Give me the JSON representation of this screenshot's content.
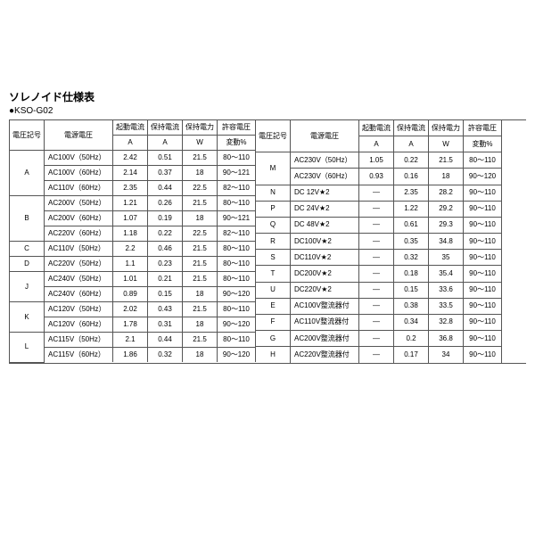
{
  "title": "ソレノイド仕様表",
  "subtitle": "●KSO-G02",
  "headers": {
    "sym": "電圧記号",
    "ps": "電源電圧",
    "inr": "起動電流\nA",
    "hold": "保持電流\nA",
    "pw": "保持電力\nW",
    "tol": "許容電圧\n変動%"
  },
  "left_groups": [
    {
      "sym": "A",
      "rows": [
        {
          "ps": "AC100V（50Hz）",
          "v": [
            "2.42",
            "0.51",
            "21.5",
            "80～110"
          ]
        },
        {
          "ps": "AC100V（60Hz）",
          "v": [
            "2.14",
            "0.37",
            "18",
            "90～121"
          ]
        },
        {
          "ps": "AC110V（60Hz）",
          "v": [
            "2.35",
            "0.44",
            "22.5",
            "82～110"
          ]
        }
      ]
    },
    {
      "sym": "B",
      "rows": [
        {
          "ps": "AC200V（50Hz）",
          "v": [
            "1.21",
            "0.26",
            "21.5",
            "80～110"
          ]
        },
        {
          "ps": "AC200V（60Hz）",
          "v": [
            "1.07",
            "0.19",
            "18",
            "90～121"
          ]
        },
        {
          "ps": "AC220V（60Hz）",
          "v": [
            "1.18",
            "0.22",
            "22.5",
            "82～110"
          ]
        }
      ]
    },
    {
      "sym": "C",
      "rows": [
        {
          "ps": "AC110V（50Hz）",
          "v": [
            "2.2",
            "0.46",
            "21.5",
            "80～110"
          ]
        }
      ]
    },
    {
      "sym": "D",
      "rows": [
        {
          "ps": "AC220V（50Hz）",
          "v": [
            "1.1",
            "0.23",
            "21.5",
            "80～110"
          ]
        }
      ]
    },
    {
      "sym": "J",
      "rows": [
        {
          "ps": "AC240V（50Hz）",
          "v": [
            "1.01",
            "0.21",
            "21.5",
            "80～110"
          ]
        },
        {
          "ps": "AC240V（60Hz）",
          "v": [
            "0.89",
            "0.15",
            "18",
            "90～120"
          ]
        }
      ]
    },
    {
      "sym": "K",
      "rows": [
        {
          "ps": "AC120V（50Hz）",
          "v": [
            "2.02",
            "0.43",
            "21.5",
            "80～110"
          ]
        },
        {
          "ps": "AC120V（60Hz）",
          "v": [
            "1.78",
            "0.31",
            "18",
            "90～120"
          ]
        }
      ]
    },
    {
      "sym": "L",
      "rows": [
        {
          "ps": "AC115V（50Hz）",
          "v": [
            "2.1",
            "0.44",
            "21.5",
            "80～110"
          ]
        },
        {
          "ps": "AC115V（60Hz）",
          "v": [
            "1.86",
            "0.32",
            "18",
            "90～120"
          ]
        }
      ]
    }
  ],
  "right_groups": [
    {
      "sym": "M",
      "rows": [
        {
          "ps": "AC230V（50Hz）",
          "v": [
            "1.05",
            "0.22",
            "21.5",
            "80～110"
          ]
        },
        {
          "ps": "AC230V（60Hz）",
          "v": [
            "0.93",
            "0.16",
            "18",
            "90～120"
          ]
        }
      ]
    },
    {
      "sym": "N",
      "rows": [
        {
          "ps": "DC 12V★2",
          "v": [
            "—",
            "2.35",
            "28.2",
            "90～110"
          ]
        }
      ]
    },
    {
      "sym": "P",
      "rows": [
        {
          "ps": "DC 24V★2",
          "v": [
            "—",
            "1.22",
            "29.2",
            "90～110"
          ]
        }
      ]
    },
    {
      "sym": "Q",
      "rows": [
        {
          "ps": "DC 48V★2",
          "v": [
            "—",
            "0.61",
            "29.3",
            "90～110"
          ]
        }
      ]
    },
    {
      "sym": "R",
      "rows": [
        {
          "ps": "DC100V★2",
          "v": [
            "—",
            "0.35",
            "34.8",
            "90～110"
          ]
        }
      ]
    },
    {
      "sym": "S",
      "rows": [
        {
          "ps": "DC110V★2",
          "v": [
            "—",
            "0.32",
            "35",
            "90～110"
          ]
        }
      ]
    },
    {
      "sym": "T",
      "rows": [
        {
          "ps": "DC200V★2",
          "v": [
            "—",
            "0.18",
            "35.4",
            "90～110"
          ]
        }
      ]
    },
    {
      "sym": "U",
      "rows": [
        {
          "ps": "DC220V★2",
          "v": [
            "—",
            "0.15",
            "33.6",
            "90～110"
          ]
        }
      ]
    },
    {
      "sym": "E",
      "rows": [
        {
          "ps": "AC100V整流器付",
          "v": [
            "—",
            "0.38",
            "33.5",
            "90～110"
          ]
        }
      ]
    },
    {
      "sym": "F",
      "rows": [
        {
          "ps": "AC110V整流器付",
          "v": [
            "—",
            "0.34",
            "32.8",
            "90～110"
          ]
        }
      ]
    },
    {
      "sym": "G",
      "rows": [
        {
          "ps": "AC200V整流器付",
          "v": [
            "—",
            "0.2",
            "36.8",
            "90～110"
          ]
        }
      ]
    },
    {
      "sym": "H",
      "rows": [
        {
          "ps": "AC220V整流器付",
          "v": [
            "—",
            "0.17",
            "34",
            "90～110"
          ]
        }
      ]
    }
  ]
}
